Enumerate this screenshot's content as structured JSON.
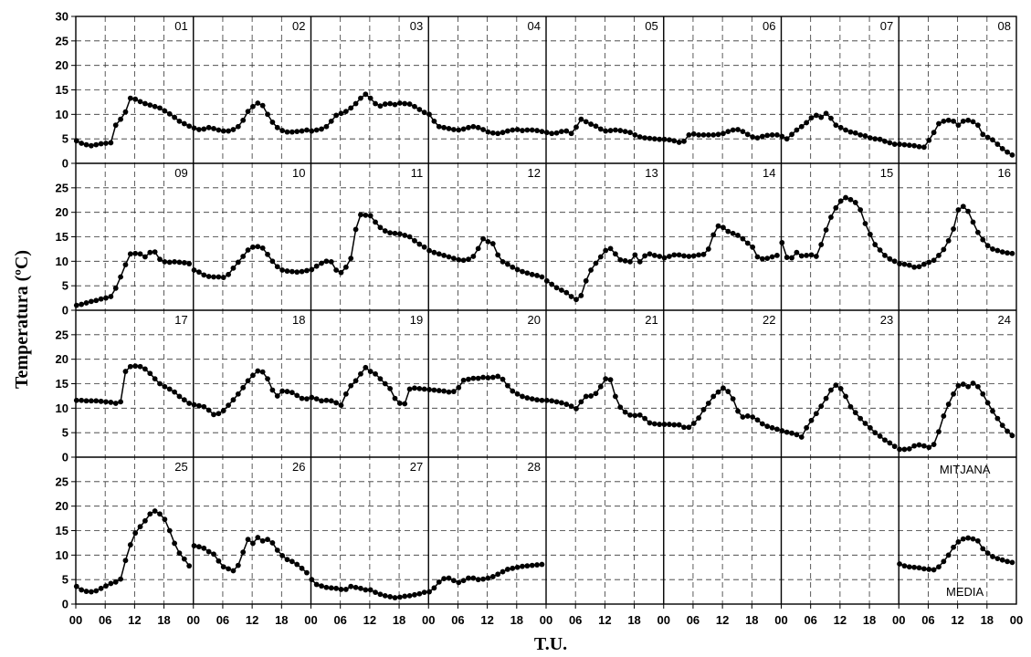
{
  "chart_data": {
    "type": "line",
    "xlabel": "T.U.",
    "ylabel": "Temperatura (ºC)",
    "ylim": [
      0,
      30
    ],
    "y_ticks": [
      "0",
      "5",
      "10",
      "15",
      "20",
      "25",
      "30"
    ],
    "x_ticks": [
      "00",
      "06",
      "12",
      "18"
    ],
    "grid": "dashed",
    "marker": "filled-circle",
    "line_color": "#000000",
    "panels": [
      {
        "label": "01",
        "values": [
          4.6,
          4.1,
          3.8,
          3.6,
          3.8,
          4.0,
          4.1,
          4.2,
          7.8,
          9.0,
          10.5,
          13.3,
          13.1,
          12.6,
          12.2,
          11.9,
          11.6,
          11.3,
          10.7,
          10.1,
          9.4,
          8.6,
          8.1,
          7.6
        ]
      },
      {
        "label": "02",
        "values": [
          7.2,
          6.9,
          7.0,
          7.3,
          7.1,
          6.8,
          6.6,
          6.6,
          6.9,
          7.5,
          8.8,
          10.6,
          11.6,
          12.3,
          11.8,
          10.0,
          8.4,
          7.3,
          6.7,
          6.4,
          6.4,
          6.5,
          6.6,
          6.8
        ]
      },
      {
        "label": "03",
        "values": [
          6.6,
          6.8,
          7.0,
          7.5,
          8.6,
          9.8,
          10.2,
          10.6,
          11.3,
          12.2,
          13.3,
          14.1,
          13.3,
          12.2,
          11.7,
          12.1,
          12.2,
          12.0,
          12.3,
          12.2,
          12.1,
          11.6,
          11.0,
          10.4
        ]
      },
      {
        "label": "04",
        "values": [
          10.0,
          8.6,
          7.5,
          7.3,
          7.1,
          6.9,
          6.8,
          7.0,
          7.3,
          7.5,
          7.3,
          6.9,
          6.4,
          6.2,
          6.1,
          6.3,
          6.6,
          6.8,
          6.9,
          6.7,
          6.8,
          6.8,
          6.7,
          6.5
        ]
      },
      {
        "label": "05",
        "values": [
          6.3,
          6.1,
          6.2,
          6.5,
          6.6,
          6.1,
          7.4,
          9.0,
          8.5,
          8.0,
          7.6,
          7.0,
          6.6,
          6.7,
          6.8,
          6.7,
          6.5,
          6.3,
          5.8,
          5.4,
          5.2,
          5.1,
          5.0,
          4.9
        ]
      },
      {
        "label": "06",
        "values": [
          4.9,
          4.8,
          4.6,
          4.3,
          4.5,
          5.8,
          6.0,
          5.8,
          5.8,
          5.8,
          5.8,
          5.9,
          6.1,
          6.5,
          6.8,
          6.9,
          6.5,
          5.9,
          5.4,
          5.2,
          5.5,
          5.7,
          5.8,
          5.8
        ]
      },
      {
        "label": "07",
        "values": [
          5.5,
          5.0,
          5.9,
          6.8,
          7.5,
          8.3,
          9.3,
          9.8,
          9.4,
          10.2,
          9.2,
          7.8,
          7.3,
          6.8,
          6.4,
          6.2,
          5.8,
          5.6,
          5.2,
          5.0,
          4.9,
          4.5,
          4.2,
          3.9
        ]
      },
      {
        "label": "08",
        "values": [
          3.9,
          3.8,
          3.7,
          3.6,
          3.4,
          3.3,
          4.7,
          6.3,
          8.1,
          8.6,
          8.8,
          8.6,
          7.8,
          8.6,
          8.8,
          8.5,
          7.8,
          5.9,
          5.3,
          4.8,
          3.9,
          3.0,
          2.3,
          1.7
        ]
      },
      {
        "label": "09",
        "values": [
          1.0,
          1.2,
          1.5,
          1.8,
          2.0,
          2.3,
          2.5,
          2.8,
          4.5,
          6.8,
          9.3,
          11.5,
          11.6,
          11.5,
          10.9,
          11.8,
          11.9,
          10.4,
          9.9,
          9.8,
          9.9,
          9.8,
          9.7,
          9.5
        ]
      },
      {
        "label": "10",
        "values": [
          8.2,
          7.8,
          7.2,
          6.9,
          6.8,
          6.8,
          6.7,
          7.3,
          8.6,
          9.8,
          11.0,
          12.3,
          12.9,
          13.0,
          12.7,
          11.4,
          10.0,
          8.9,
          8.2,
          8.0,
          7.9,
          7.8,
          7.9,
          8.1
        ]
      },
      {
        "label": "11",
        "values": [
          8.3,
          9.0,
          9.6,
          10.0,
          9.9,
          8.2,
          7.7,
          8.8,
          10.6,
          16.5,
          19.5,
          19.4,
          19.3,
          18.0,
          16.9,
          16.2,
          15.8,
          15.7,
          15.6,
          15.3,
          15.0,
          14.2,
          13.5,
          12.9
        ]
      },
      {
        "label": "12",
        "values": [
          12.2,
          11.8,
          11.5,
          11.2,
          10.9,
          10.6,
          10.3,
          10.2,
          10.4,
          11.0,
          12.6,
          14.6,
          14.0,
          13.6,
          11.3,
          9.9,
          9.4,
          8.8,
          8.3,
          7.9,
          7.6,
          7.3,
          7.1,
          6.8
        ]
      },
      {
        "label": "13",
        "values": [
          6.0,
          5.3,
          4.6,
          4.1,
          3.6,
          2.8,
          2.2,
          3.0,
          6.0,
          8.2,
          9.6,
          10.9,
          12.2,
          12.6,
          11.5,
          10.3,
          10.1,
          9.9,
          11.3,
          9.9,
          11.1,
          11.5,
          11.2,
          11.0
        ]
      },
      {
        "label": "14",
        "values": [
          10.7,
          11.0,
          11.3,
          11.3,
          11.1,
          11.0,
          11.1,
          11.3,
          11.4,
          12.5,
          15.4,
          17.2,
          16.9,
          16.1,
          15.7,
          15.3,
          14.6,
          13.7,
          12.9,
          10.9,
          10.5,
          10.6,
          10.9,
          11.2
        ]
      },
      {
        "label": "15",
        "values": [
          13.8,
          10.8,
          10.7,
          11.8,
          11.1,
          11.2,
          11.3,
          11.0,
          13.4,
          16.4,
          19.0,
          20.9,
          22.3,
          23.0,
          22.6,
          22.0,
          20.5,
          17.7,
          15.5,
          13.4,
          12.3,
          11.2,
          10.5,
          10.0
        ]
      },
      {
        "label": "16",
        "values": [
          9.5,
          9.4,
          9.2,
          8.8,
          8.9,
          9.4,
          9.8,
          10.2,
          11.2,
          12.4,
          14.2,
          16.6,
          20.5,
          21.2,
          20.2,
          18.0,
          15.9,
          14.4,
          13.2,
          12.5,
          12.2,
          11.9,
          11.7,
          11.6
        ]
      },
      {
        "label": "17",
        "values": [
          11.6,
          11.6,
          11.5,
          11.5,
          11.5,
          11.4,
          11.3,
          11.2,
          11.0,
          11.3,
          17.5,
          18.5,
          18.6,
          18.5,
          18.0,
          17.1,
          16.0,
          15.0,
          14.4,
          13.9,
          13.3,
          12.4,
          11.7,
          11.0
        ]
      },
      {
        "label": "18",
        "values": [
          10.7,
          10.5,
          10.3,
          9.6,
          8.7,
          8.9,
          9.5,
          10.6,
          11.7,
          12.9,
          14.2,
          15.6,
          16.7,
          17.6,
          17.4,
          16.0,
          13.7,
          12.5,
          13.5,
          13.4,
          13.2,
          12.6,
          12.0,
          11.9
        ]
      },
      {
        "label": "19",
        "values": [
          12.2,
          11.9,
          11.5,
          11.6,
          11.5,
          11.1,
          10.6,
          12.9,
          14.6,
          15.6,
          17.0,
          18.3,
          17.5,
          17.0,
          16.0,
          15.0,
          14.0,
          12.0,
          11.0,
          10.9,
          13.9,
          14.1,
          14.0,
          13.9
        ]
      },
      {
        "label": "20",
        "values": [
          13.8,
          13.7,
          13.6,
          13.5,
          13.3,
          13.4,
          14.2,
          15.7,
          15.9,
          16.1,
          16.1,
          16.3,
          16.2,
          16.3,
          16.5,
          15.9,
          14.6,
          13.5,
          12.9,
          12.4,
          12.1,
          11.9,
          11.7,
          11.6
        ]
      },
      {
        "label": "21",
        "values": [
          11.6,
          11.5,
          11.3,
          11.1,
          10.8,
          10.4,
          9.9,
          11.3,
          12.4,
          12.5,
          13.0,
          14.4,
          16.0,
          15.8,
          12.4,
          10.2,
          9.2,
          8.6,
          8.5,
          8.6,
          7.9,
          7.0,
          6.8,
          6.7
        ]
      },
      {
        "label": "22",
        "values": [
          6.7,
          6.7,
          6.6,
          6.6,
          6.1,
          6.1,
          6.9,
          8.0,
          9.7,
          11.0,
          12.4,
          13.3,
          14.1,
          13.4,
          11.9,
          9.4,
          8.2,
          8.4,
          8.2,
          7.6,
          6.8,
          6.3,
          6.0,
          5.7
        ]
      },
      {
        "label": "23",
        "values": [
          5.4,
          5.1,
          4.9,
          4.6,
          4.1,
          6.0,
          7.5,
          8.9,
          10.4,
          12.0,
          13.7,
          14.7,
          14.0,
          12.4,
          10.3,
          9.1,
          7.9,
          6.9,
          6.0,
          5.0,
          4.3,
          3.5,
          2.9,
          2.2
        ]
      },
      {
        "label": "24",
        "values": [
          1.6,
          1.6,
          1.7,
          2.3,
          2.5,
          2.3,
          2.0,
          2.6,
          5.2,
          8.4,
          10.8,
          12.9,
          14.6,
          14.9,
          14.4,
          15.1,
          14.4,
          12.9,
          11.1,
          9.4,
          7.9,
          6.5,
          5.3,
          4.4
        ]
      },
      {
        "label": "25",
        "values": [
          3.6,
          2.9,
          2.6,
          2.5,
          2.7,
          3.2,
          3.7,
          4.2,
          4.5,
          5.1,
          8.9,
          12.1,
          14.5,
          15.8,
          17.0,
          18.4,
          19.0,
          18.4,
          17.3,
          15.0,
          12.4,
          10.4,
          9.2,
          7.8
        ]
      },
      {
        "label": "26",
        "values": [
          11.9,
          11.7,
          11.4,
          10.7,
          10.2,
          8.8,
          7.6,
          7.2,
          6.8,
          7.9,
          10.6,
          13.2,
          12.4,
          13.6,
          12.9,
          13.2,
          12.5,
          11.0,
          9.9,
          9.1,
          8.7,
          8.1,
          7.3,
          6.4
        ]
      },
      {
        "label": "27",
        "values": [
          5.0,
          4.0,
          3.7,
          3.4,
          3.3,
          3.2,
          3.0,
          3.0,
          3.6,
          3.4,
          3.2,
          2.9,
          2.9,
          2.4,
          2.0,
          1.7,
          1.5,
          1.3,
          1.4,
          1.6,
          1.7,
          1.9,
          2.1,
          2.4
        ]
      },
      {
        "label": "28",
        "values": [
          2.5,
          3.3,
          4.5,
          5.2,
          5.3,
          4.8,
          4.4,
          4.8,
          5.3,
          5.3,
          5.0,
          5.1,
          5.3,
          5.6,
          6.1,
          6.6,
          7.1,
          7.3,
          7.5,
          7.7,
          7.8,
          7.9,
          8.0,
          8.1
        ]
      },
      {
        "label": "",
        "values": []
      },
      {
        "label": "",
        "values": []
      },
      {
        "label": "",
        "values": []
      },
      {
        "label": "MITJANA",
        "sublabel": "MEDIA",
        "values": [
          8.2,
          7.8,
          7.6,
          7.5,
          7.4,
          7.2,
          7.1,
          7.0,
          7.6,
          8.7,
          10.0,
          11.6,
          12.7,
          13.3,
          13.5,
          13.3,
          12.9,
          11.3,
          10.4,
          9.7,
          9.3,
          9.0,
          8.7,
          8.5
        ]
      }
    ]
  }
}
